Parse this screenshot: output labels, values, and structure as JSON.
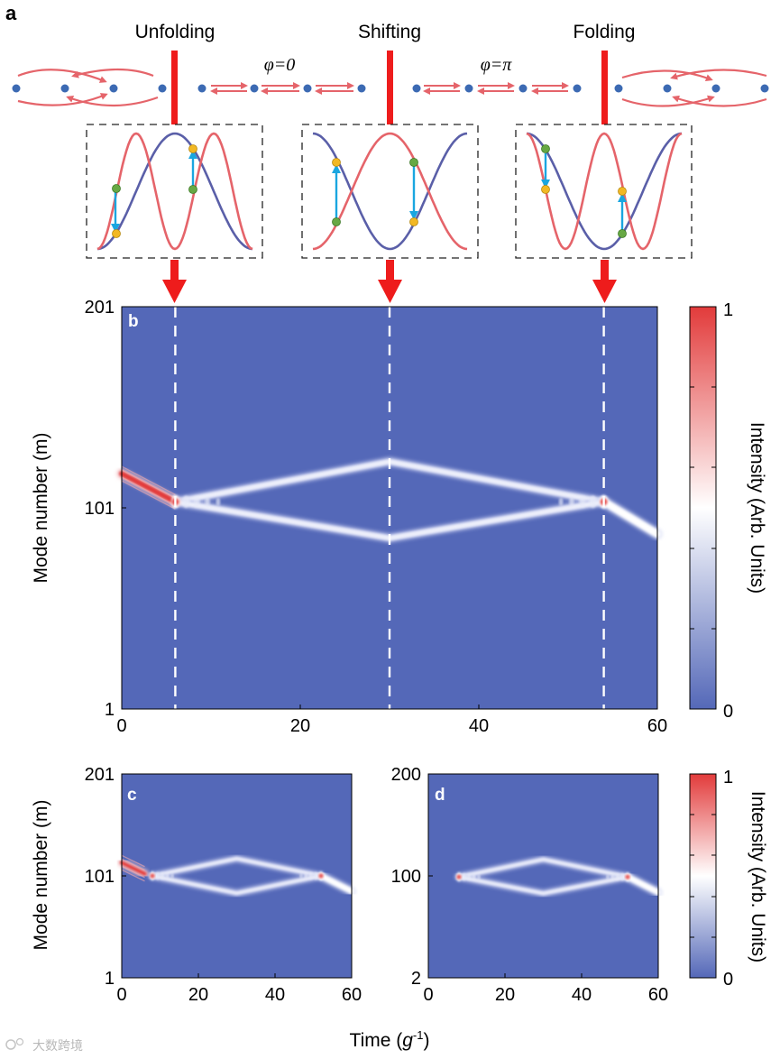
{
  "panel_a": {
    "letter": "a",
    "headers": [
      "Unfolding",
      "Shifting",
      "Folding"
    ],
    "phases": [
      "φ=0",
      "φ=π"
    ]
  },
  "panel_b": {
    "letter": "b",
    "ylabel": "Mode number (m)",
    "xlabel": "Time (g⁻¹)",
    "yticks": [
      "201",
      "101",
      "1"
    ],
    "xticks": [
      "0",
      "20",
      "40",
      "60"
    ],
    "colorbar_label": "Intensity (Arb. Units)",
    "colorbar_ticks": [
      "1",
      "0"
    ]
  },
  "panel_c": {
    "letter": "c",
    "ylabel": "Mode number (m)",
    "yticks": [
      "201",
      "101",
      "1"
    ],
    "xticks": [
      "0",
      "20",
      "40",
      "60"
    ]
  },
  "panel_d": {
    "letter": "d",
    "yticks": [
      "200",
      "100",
      "2"
    ],
    "xticks": [
      "0",
      "20",
      "40",
      "60"
    ],
    "colorbar_label": "Intensity (Arb. Units)",
    "colorbar_ticks": [
      "1",
      "0"
    ]
  },
  "shared_xlabel": "Time (g⁻¹)",
  "watermark": "大数跨境",
  "colors": {
    "background_blue": "#5468b8",
    "red": "#e23b3b",
    "arrow_red": "#ee1c1c",
    "wave_red": "#e5646a",
    "wave_blue": "#5a5fa8",
    "node_blue": "#3c6ab3",
    "cyan": "#1aa6e0"
  },
  "chart_data": [
    {
      "type": "heatmap",
      "panel": "b",
      "x_range": [
        0,
        60
      ],
      "y_range": [
        1,
        201
      ],
      "xlabel": "Time (g⁻¹)",
      "ylabel": "Mode number (m)",
      "events_time": [
        6,
        30,
        54
      ],
      "event_labels": [
        "Unfolding",
        "Shifting",
        "Folding"
      ],
      "trajectory": {
        "incoming": [
          [
            0,
            118
          ],
          [
            6,
            104
          ]
        ],
        "upper_branch": [
          [
            6,
            104
          ],
          [
            30,
            124
          ],
          [
            54,
            104
          ]
        ],
        "lower_branch": [
          [
            6,
            104
          ],
          [
            30,
            86
          ],
          [
            54,
            104
          ]
        ],
        "outgoing": [
          [
            54,
            104
          ],
          [
            60,
            88
          ]
        ]
      },
      "colorbar": {
        "min": 0,
        "max": 1,
        "label": "Intensity (Arb. Units)"
      }
    },
    {
      "type": "heatmap",
      "panel": "c",
      "x_range": [
        0,
        60
      ],
      "y_range": [
        1,
        201
      ],
      "trajectory": {
        "incoming": [
          [
            0,
            114
          ],
          [
            6,
            103
          ]
        ],
        "upper_branch": [
          [
            8,
            101
          ],
          [
            30,
            118
          ],
          [
            52,
            101
          ]
        ],
        "lower_branch": [
          [
            8,
            101
          ],
          [
            30,
            84
          ],
          [
            52,
            101
          ]
        ],
        "outgoing": [
          [
            52,
            101
          ],
          [
            60,
            86
          ]
        ]
      }
    },
    {
      "type": "heatmap",
      "panel": "d",
      "x_range": [
        0,
        60
      ],
      "y_range": [
        2,
        200
      ],
      "trajectory": {
        "upper_branch": [
          [
            8,
            100
          ],
          [
            30,
            117
          ],
          [
            52,
            100
          ]
        ],
        "lower_branch": [
          [
            8,
            100
          ],
          [
            30,
            84
          ],
          [
            52,
            100
          ]
        ],
        "outgoing": [
          [
            52,
            100
          ],
          [
            60,
            85
          ]
        ]
      },
      "colorbar": {
        "min": 0,
        "max": 1,
        "label": "Intensity (Arb. Units)"
      }
    }
  ]
}
